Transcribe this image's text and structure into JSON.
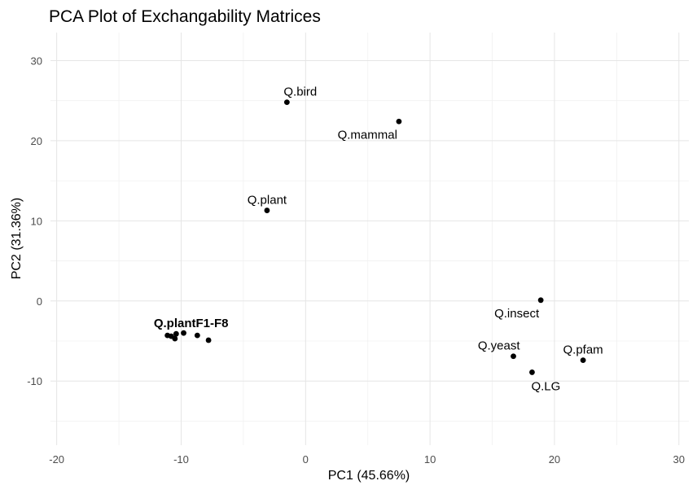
{
  "chart_data": {
    "type": "scatter",
    "title": "PCA Plot of Exchangability Matrices",
    "xlabel": "PC1 (45.66%)",
    "ylabel": "PC2 (31.36%)",
    "xlim": [
      -20.5,
      30.8
    ],
    "ylim": [
      -18,
      33.5
    ],
    "x_ticks": [
      -20,
      -10,
      0,
      10,
      20,
      30
    ],
    "y_ticks": [
      -10,
      0,
      10,
      20,
      30
    ],
    "grid": true,
    "points": [
      {
        "x": -1.5,
        "y": 24.8
      },
      {
        "x": 7.5,
        "y": 22.4
      },
      {
        "x": -3.1,
        "y": 11.3
      },
      {
        "x": 18.9,
        "y": 0.1
      },
      {
        "x": 16.7,
        "y": -6.9
      },
      {
        "x": 22.3,
        "y": -7.4
      },
      {
        "x": 18.2,
        "y": -8.9
      },
      {
        "x": -11.1,
        "y": -4.3
      },
      {
        "x": -10.8,
        "y": -4.4
      },
      {
        "x": -10.4,
        "y": -4.1
      },
      {
        "x": -10.5,
        "y": -4.7
      },
      {
        "x": -9.8,
        "y": -4.0
      },
      {
        "x": -8.7,
        "y": -4.3
      },
      {
        "x": -7.8,
        "y": -4.9
      }
    ],
    "labels": [
      {
        "text": "Q.bird",
        "x": -1.5,
        "y": 24.8,
        "anchor": "above-right"
      },
      {
        "text": "Q.mammal",
        "x": 7.5,
        "y": 22.4,
        "anchor": "below-left"
      },
      {
        "text": "Q.plant",
        "x": -3.1,
        "y": 11.3,
        "anchor": "above"
      },
      {
        "text": "Q.insect",
        "x": 18.9,
        "y": 0.1,
        "anchor": "below-left"
      },
      {
        "text": "Q.yeast",
        "x": 16.7,
        "y": -6.9,
        "anchor": "above-left"
      },
      {
        "text": "Q.pfam",
        "x": 22.3,
        "y": -7.4,
        "anchor": "above"
      },
      {
        "text": "Q.LG",
        "x": 18.2,
        "y": -8.9,
        "anchor": "below-right"
      },
      {
        "text": "Q.plantF1-F8",
        "x": -9.2,
        "y": -4.1,
        "anchor": "above",
        "bold": true
      }
    ],
    "point_color": "#000000",
    "background": "#ffffff"
  }
}
